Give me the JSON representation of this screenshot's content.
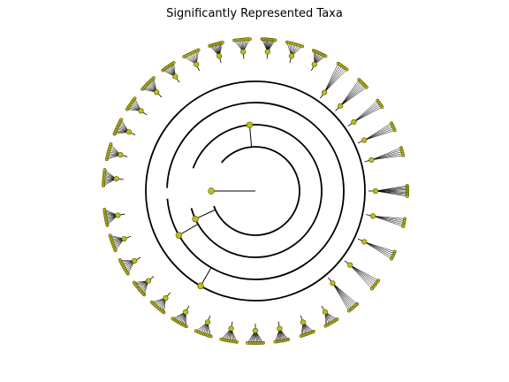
{
  "chart_data": {
    "type": "circular-dendrogram",
    "title": "Significantly Represented Taxa",
    "subtitle": "",
    "xlabel": "",
    "ylabel": "",
    "legend": "none",
    "grid": false,
    "colors": {
      "node_fill": "#bdbd1a",
      "node_stroke": "#555500",
      "branch": "#000000",
      "background": "#ffffff"
    },
    "tree": {
      "root_angle_deg": 0,
      "rings": [
        {
          "depth": 1,
          "arc_from_deg": -140,
          "arc_to_deg": 160
        },
        {
          "depth": 2,
          "arc_from_deg": -160,
          "arc_to_deg": 165
        },
        {
          "depth": 3,
          "arc_from_deg": -178,
          "arc_to_deg": 175
        },
        {
          "depth": 4,
          "arc_from_deg": -180,
          "arc_to_deg": 180
        }
      ],
      "radial_nodes": [
        {
          "angle_deg": 180,
          "from_depth": 0,
          "to_depth": 1
        },
        {
          "angle_deg": -95,
          "from_depth": 1,
          "to_depth": 2
        },
        {
          "angle_deg": 155,
          "from_depth": 1,
          "to_depth": 2
        },
        {
          "angle_deg": 150,
          "from_depth": 2,
          "to_depth": 3
        },
        {
          "angle_deg": 120,
          "from_depth": 3,
          "to_depth": 4
        }
      ],
      "leaf_clusters": [
        {
          "center_deg": -175,
          "span_deg": 6,
          "count": 10
        },
        {
          "center_deg": -165,
          "span_deg": 6,
          "count": 9
        },
        {
          "center_deg": -155,
          "span_deg": 6,
          "count": 10
        },
        {
          "center_deg": -145,
          "span_deg": 5,
          "count": 8
        },
        {
          "center_deg": -135,
          "span_deg": 6,
          "count": 10
        },
        {
          "center_deg": -125,
          "span_deg": 5,
          "count": 9
        },
        {
          "center_deg": -115,
          "span_deg": 6,
          "count": 8
        },
        {
          "center_deg": -105,
          "span_deg": 5,
          "count": 10
        },
        {
          "center_deg": -95,
          "span_deg": 6,
          "count": 9
        },
        {
          "center_deg": -85,
          "span_deg": 5,
          "count": 11
        },
        {
          "center_deg": -75,
          "span_deg": 6,
          "count": 8
        },
        {
          "center_deg": -65,
          "span_deg": 5,
          "count": 9
        },
        {
          "center_deg": -55,
          "span_deg": 4,
          "count": 6
        },
        {
          "center_deg": -45,
          "span_deg": 4,
          "count": 7
        },
        {
          "center_deg": -35,
          "span_deg": 3,
          "count": 5
        },
        {
          "center_deg": -25,
          "span_deg": 3,
          "count": 5
        },
        {
          "center_deg": -15,
          "span_deg": 3,
          "count": 5
        },
        {
          "center_deg": 0,
          "span_deg": 4,
          "count": 9
        },
        {
          "center_deg": 12,
          "span_deg": 3,
          "count": 5
        },
        {
          "center_deg": 25,
          "span_deg": 3,
          "count": 5
        },
        {
          "center_deg": 38,
          "span_deg": 4,
          "count": 6
        },
        {
          "center_deg": 50,
          "span_deg": 4,
          "count": 7
        },
        {
          "center_deg": 60,
          "span_deg": 5,
          "count": 8
        },
        {
          "center_deg": 70,
          "span_deg": 5,
          "count": 9
        },
        {
          "center_deg": 80,
          "span_deg": 5,
          "count": 10
        },
        {
          "center_deg": 90,
          "span_deg": 6,
          "count": 11
        },
        {
          "center_deg": 100,
          "span_deg": 6,
          "count": 10
        },
        {
          "center_deg": 110,
          "span_deg": 6,
          "count": 9
        },
        {
          "center_deg": 120,
          "span_deg": 6,
          "count": 10
        },
        {
          "center_deg": 130,
          "span_deg": 6,
          "count": 9
        },
        {
          "center_deg": 140,
          "span_deg": 6,
          "count": 10
        },
        {
          "center_deg": 150,
          "span_deg": 6,
          "count": 9
        },
        {
          "center_deg": 160,
          "span_deg": 6,
          "count": 10
        },
        {
          "center_deg": 170,
          "span_deg": 6,
          "count": 11
        }
      ]
    }
  }
}
